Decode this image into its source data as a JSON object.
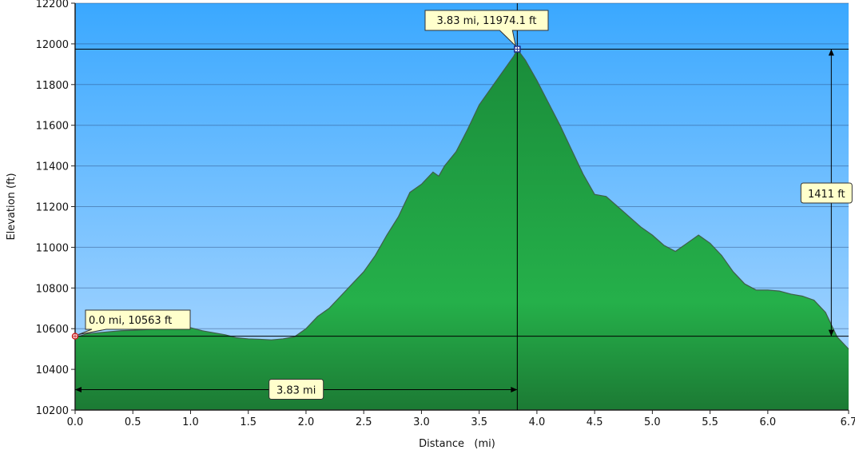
{
  "chart_data": {
    "type": "area",
    "xlabel": "Distance   (mi)",
    "ylabel": "Elevation (ft)",
    "xlim": [
      0,
      6.7
    ],
    "ylim": [
      10200,
      12200
    ],
    "x_ticks": [
      0.0,
      0.5,
      1.0,
      1.5,
      2.0,
      2.5,
      3.0,
      3.5,
      4.0,
      4.5,
      5.0,
      5.5,
      6.0,
      6.7
    ],
    "x_tick_labels": [
      "0.0",
      "0.5",
      "1.0",
      "1.5",
      "2.0",
      "2.5",
      "3.0",
      "3.5",
      "4.0",
      "4.5",
      "5.0",
      "5.5",
      "6.0",
      "6.7"
    ],
    "y_ticks": [
      10200,
      10400,
      10600,
      10800,
      11000,
      11200,
      11400,
      11600,
      11800,
      12000,
      12200
    ],
    "y_tick_labels": [
      "10200",
      "10400",
      "10600",
      "10800",
      "11000",
      "11200",
      "11400",
      "11600",
      "11800",
      "12000",
      "12200"
    ],
    "grid": "horizontal",
    "sky_colors": {
      "top": "#3aa8ff",
      "bottom": "#b2daff"
    },
    "fill_colors": {
      "top": "#1a8c3a",
      "mid": "#25b04a",
      "bottom": "#1c7a34"
    },
    "line_color": "#3f5f4a",
    "series": [
      {
        "x": [
          0.0,
          0.05,
          0.1,
          0.2,
          0.3,
          0.4,
          0.5,
          0.6,
          0.7,
          0.8,
          0.9,
          1.0,
          1.1,
          1.2,
          1.3,
          1.4,
          1.5,
          1.6,
          1.7,
          1.8,
          1.9,
          2.0,
          2.1,
          2.2,
          2.3,
          2.4,
          2.5,
          2.6,
          2.7,
          2.8,
          2.9,
          3.0,
          3.1,
          3.15,
          3.2,
          3.3,
          3.4,
          3.5,
          3.6,
          3.7,
          3.8,
          3.83,
          3.9,
          4.0,
          4.1,
          4.2,
          4.3,
          4.4,
          4.5,
          4.6,
          4.7,
          4.8,
          4.9,
          5.0,
          5.1,
          5.2,
          5.3,
          5.4,
          5.5,
          5.6,
          5.7,
          5.8,
          5.9,
          6.0,
          6.1,
          6.2,
          6.3,
          6.4,
          6.5,
          6.6,
          6.7
        ],
        "y": [
          10563,
          10565,
          10575,
          10580,
          10585,
          10590,
          10592,
          10595,
          10598,
          10600,
          10603,
          10605,
          10590,
          10580,
          10570,
          10555,
          10550,
          10548,
          10545,
          10550,
          10560,
          10600,
          10660,
          10700,
          10760,
          10820,
          10880,
          10960,
          11060,
          11150,
          11270,
          11310,
          11370,
          11350,
          11400,
          11470,
          11580,
          11700,
          11780,
          11860,
          11940,
          11974,
          11920,
          11820,
          11710,
          11600,
          11480,
          11360,
          11260,
          11250,
          11200,
          11150,
          11100,
          11060,
          11010,
          10980,
          11020,
          11060,
          11020,
          10960,
          10880,
          10820,
          10790,
          10790,
          10785,
          10770,
          10760,
          10740,
          10680,
          10560,
          10500
        ]
      }
    ],
    "annotations": {
      "peak": {
        "label": "3.83 mi, 11974.1 ft",
        "x": 3.83,
        "y": 11974.1
      },
      "start": {
        "label": "0.0 mi, 10563 ft",
        "x": 0.0,
        "y": 10563
      },
      "distance": {
        "label": "3.83 mi",
        "from": 0.0,
        "to": 3.83,
        "y": 10300
      },
      "gain": {
        "label": "1411 ft",
        "from": 10563,
        "to": 11974.1,
        "x": 6.55
      }
    }
  }
}
